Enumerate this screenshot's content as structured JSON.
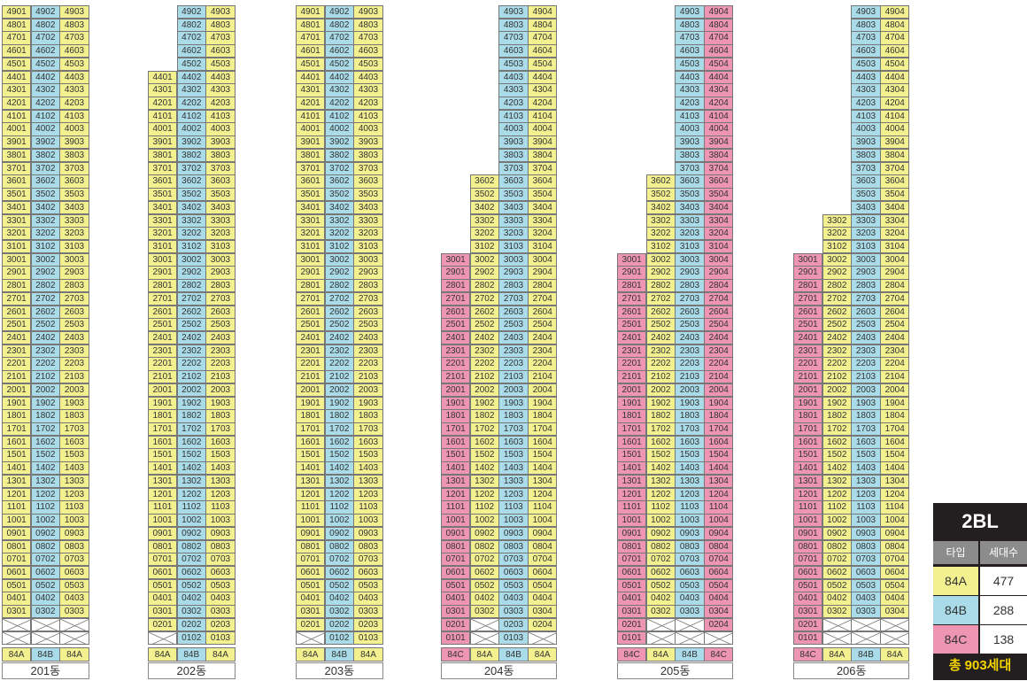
{
  "colors": {
    "84A": "#f3f090",
    "84B": "#a9dbe8",
    "84C": "#ee95b4",
    "empty": "#ffffff"
  },
  "buildings": [
    {
      "name": "201동",
      "lines": [
        "84A",
        "84B",
        "84A"
      ],
      "col_lines": [
        1,
        2,
        3
      ],
      "top": [
        49,
        49,
        49
      ],
      "bottom": [
        3,
        3,
        3
      ],
      "empty_floors": [
        1,
        2
      ]
    },
    {
      "name": "202동",
      "lines": [
        "84A",
        "84B",
        "84A"
      ],
      "col_lines": [
        1,
        2,
        3
      ],
      "top": [
        44,
        49,
        49
      ],
      "bottom": [
        2,
        1,
        1
      ],
      "empty_floors": [
        1
      ]
    },
    {
      "name": "203동",
      "lines": [
        "84A",
        "84B",
        "84A"
      ],
      "col_lines": [
        1,
        2,
        3
      ],
      "top": [
        49,
        49,
        49
      ],
      "bottom": [
        2,
        1,
        1
      ],
      "empty_floors": [
        1
      ]
    },
    {
      "name": "204동",
      "lines": [
        "84C",
        "84A",
        "84B",
        "84A"
      ],
      "col_lines": [
        1,
        2,
        3,
        4
      ],
      "top": [
        30,
        36,
        49,
        49
      ],
      "bottom": [
        1,
        3,
        1,
        2
      ],
      "empty_floors": [
        1,
        2
      ]
    },
    {
      "name": "205동",
      "lines": [
        "84C",
        "84A",
        "84B",
        "84C"
      ],
      "col_lines": [
        1,
        2,
        3,
        4
      ],
      "top": [
        30,
        36,
        49,
        49
      ],
      "bottom": [
        1,
        3,
        3,
        2
      ],
      "empty_floors": [
        1,
        2
      ]
    },
    {
      "name": "206동",
      "lines": [
        "84C",
        "84A",
        "84B",
        "84A"
      ],
      "col_lines": [
        1,
        2,
        3,
        4
      ],
      "top": [
        30,
        33,
        49,
        49
      ],
      "bottom": [
        1,
        3,
        3,
        3
      ],
      "empty_floors": [
        1,
        2
      ]
    }
  ],
  "legend": {
    "title": "2BL",
    "header_type": "타입",
    "header_count": "세대수",
    "rows": [
      {
        "type": "84A",
        "count": "477"
      },
      {
        "type": "84B",
        "count": "288"
      },
      {
        "type": "84C",
        "count": "138"
      }
    ],
    "total": "총 903세대"
  }
}
